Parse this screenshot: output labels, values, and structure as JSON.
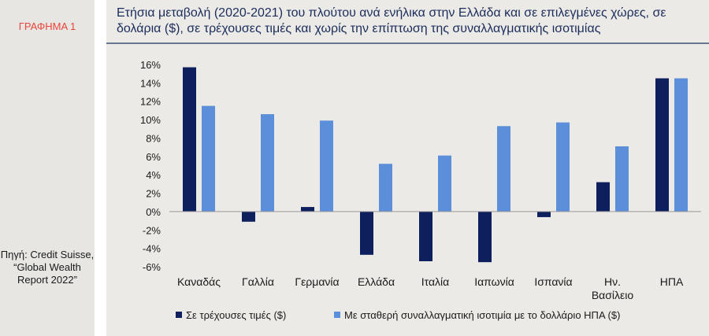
{
  "figure_label": "ΓΡΑΦΗΜΑ 1",
  "source_note": "Πηγή: Credit Suisse, “Global Wealth Report 2022”",
  "colors": {
    "series_current": "#0d1f5c",
    "series_constant": "#5b8fd9",
    "label_tag": "#e8453c",
    "title": "#1b2d5c"
  },
  "chart_data": {
    "type": "bar",
    "title": "Ετήσια μεταβολή (2020-2021) του πλούτου ανά ενήλικα στην Ελλάδα και σε επιλεγμένες χώρες, σε δολάρια ($), σε τρέχουσες τιμές και χωρίς την επίπτωση της συναλλαγματικής ισοτιμίας",
    "categories": [
      "Καναδάς",
      "Γαλλία",
      "Γερμανία",
      "Ελλάδα",
      "Ιταλία",
      "Ιαπωνία",
      "Ισπανία",
      "Ην. Βασίλειο",
      "ΗΠΑ"
    ],
    "series": [
      {
        "name": "Σε τρέχουσες τιμές ($)",
        "values": [
          15.7,
          -1.1,
          0.5,
          -4.7,
          -5.4,
          -5.5,
          -0.6,
          3.2,
          14.5
        ]
      },
      {
        "name": "Με σταθερή συναλλαγματική ισοτιμία με το δολλάριο ΗΠΑ ($)",
        "values": [
          11.5,
          10.6,
          9.9,
          5.2,
          6.1,
          9.3,
          9.7,
          7.1,
          14.5
        ]
      }
    ],
    "ylim": [
      -6,
      16
    ],
    "yticks": [
      16,
      14,
      12,
      10,
      8,
      6,
      4,
      2,
      0,
      -2,
      -4,
      -6
    ],
    "ytick_labels": [
      "16%",
      "14%",
      "12%",
      "10%",
      "8%",
      "6%",
      "4%",
      "2%",
      "0%",
      "-2%",
      "-4%",
      "-6%"
    ],
    "grid": false,
    "legend_position": "bottom"
  }
}
